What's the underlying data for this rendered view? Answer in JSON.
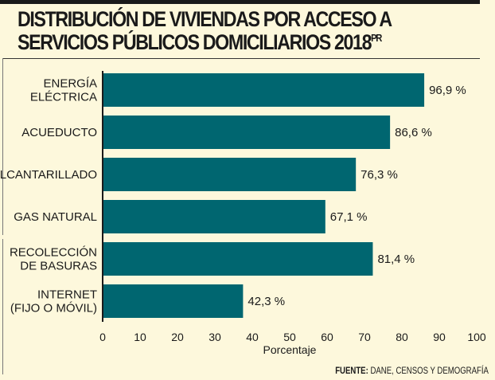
{
  "title_line1": "DISTRIBUCIÓN DE VIVIENDAS POR ACCESO A",
  "title_line2": "SERVICIOS PÚBLICOS DOMICILIARIOS 2018",
  "title_sup": "PR",
  "source_label": "FUENTE:",
  "source_text": " DANE, CENSOS Y DEMOGRAFÍA",
  "colors": {
    "bar": "#006670",
    "background": "#fdf8dc"
  },
  "chart_data": {
    "type": "bar",
    "orientation": "horizontal",
    "categories": [
      [
        "ENERGÍA",
        "ELÉCTRICA"
      ],
      [
        "ACUEDUCTO"
      ],
      [
        "ALCANTARILLADO"
      ],
      [
        "GAS NATURAL"
      ],
      [
        "RECOLECCIÓN",
        "DE BASURAS"
      ],
      [
        "INTERNET",
        "(FIJO O MÓVIL)"
      ]
    ],
    "values": [
      96.9,
      86.6,
      76.3,
      67.1,
      81.4,
      42.3
    ],
    "data_labels": [
      "96,9 %",
      "86,6 %",
      "76,3 %",
      "67,1 %",
      "81,4 %",
      "42,3 %"
    ],
    "xlabel": "Porcentaje",
    "xlim": [
      0,
      100
    ],
    "xticks": [
      "0",
      "10",
      "20",
      "30",
      "40",
      "50",
      "60",
      "70",
      "80",
      "90",
      "100"
    ],
    "grid": false
  }
}
